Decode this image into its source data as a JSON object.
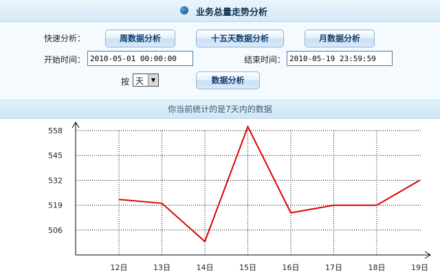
{
  "header": {
    "title": "业务总量走势分析"
  },
  "quick": {
    "label": "快速分析：",
    "week_button": "周数据分析",
    "fifteen_button": "十五天数据分析",
    "month_button": "月数据分析"
  },
  "range": {
    "start_label": "开始时间：",
    "start_value": "2010-05-01 00:00:00",
    "end_label": "结束时间：",
    "end_value": "2010-05-19 23:59:59"
  },
  "group": {
    "label": "按",
    "selected": "天"
  },
  "analyze_button": "数据分析",
  "info": "你当前统计的是7天内的数据",
  "chart_data": {
    "type": "line",
    "categories": [
      "12日",
      "13日",
      "14日",
      "15日",
      "16日",
      "17日",
      "18日",
      "19日"
    ],
    "series": [
      {
        "values": [
          522,
          520,
          500,
          560,
          515,
          519,
          519,
          532
        ],
        "color": "#dd0000"
      }
    ],
    "yticks": [
      506,
      519,
      532,
      545,
      558
    ],
    "ylim": [
      493,
      558
    ],
    "grid": true,
    "grid_style": "dotted"
  }
}
